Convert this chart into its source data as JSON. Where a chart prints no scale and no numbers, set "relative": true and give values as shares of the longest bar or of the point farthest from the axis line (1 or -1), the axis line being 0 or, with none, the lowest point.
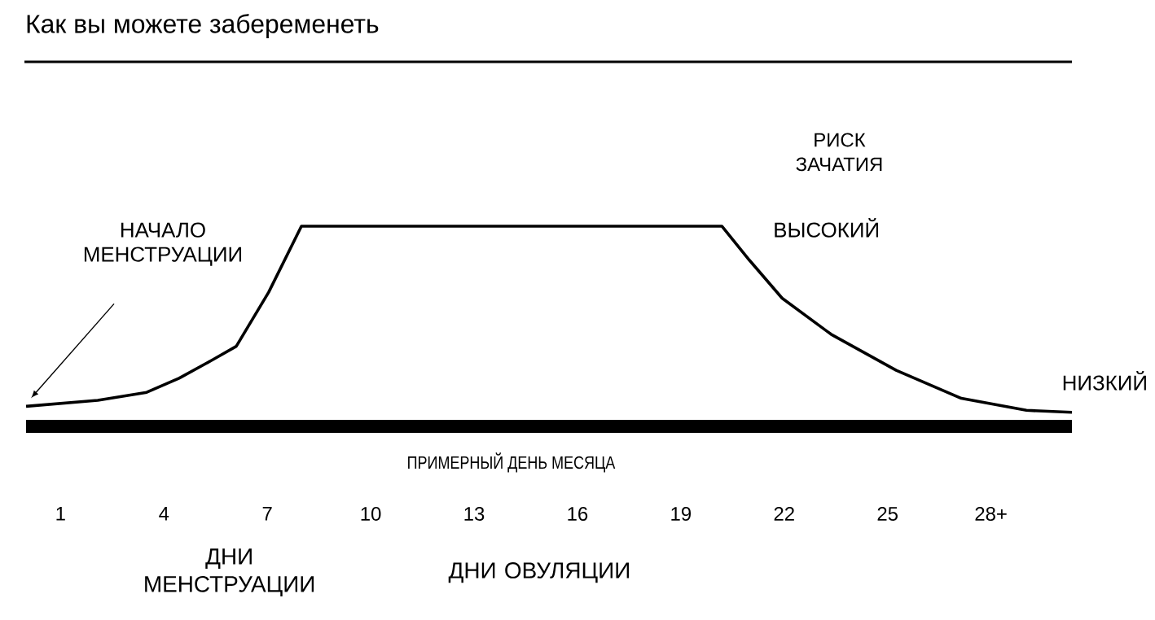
{
  "chart_data": {
    "type": "line",
    "title": "Как вы можете забеременеть",
    "xlabel": "ПРИМЕРНЫЙ ДЕНЬ МЕСЯЦА",
    "ylabel": "РИСК ЗАЧАТИЯ",
    "relative": true,
    "x": [
      0,
      2.08,
      3.5,
      4.44,
      5.39,
      6.1,
      7.04,
      7.99,
      20.19,
      20.99,
      21.94,
      23.36,
      25.25,
      27.14,
      29.03,
      30.35
    ],
    "values": [
      0.1,
      0.13,
      0.17,
      0.24,
      0.33,
      0.4,
      0.67,
      1.0,
      1.0,
      0.83,
      0.64,
      0.46,
      0.28,
      0.14,
      0.08,
      0.07
    ],
    "color": "#000000",
    "xlim": [
      0,
      30.35
    ],
    "xticks": [
      1,
      4,
      7,
      10,
      13,
      16,
      19,
      22,
      25,
      {
        "value": 28,
        "label": "28+"
      }
    ],
    "annotations": [
      "НАЧАЛО МЕНСТРУАЦИИ",
      {
        "text": "ВЫСОКИЙ",
        "x": 20.19,
        "y": 1.0
      },
      {
        "text": "НИЗКИЙ",
        "x": 30.35,
        "y": 0.07
      },
      "ДНИ МЕНСТРУАЦИИ",
      "ДНИ ОВУЛЯЦИИ"
    ],
    "marker": "none",
    "line_style": "solid",
    "grid": false
  }
}
